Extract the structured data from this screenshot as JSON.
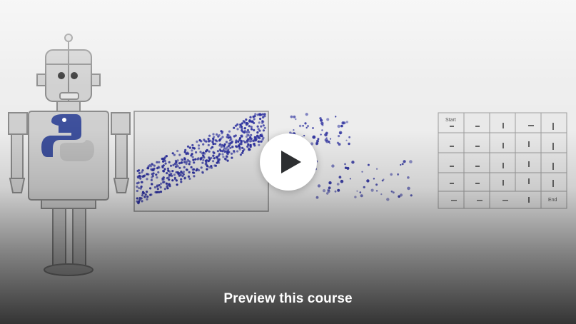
{
  "preview": {
    "caption": "Preview this course",
    "play_icon": "play-icon"
  },
  "colors": {
    "accent_dots": "#2b2f9e",
    "play_triangle": "#2d2f31",
    "caption_text": "#ffffff",
    "python_blue": "#3d4f9b"
  },
  "table_header_label": "Start",
  "table_footer_label": "End"
}
